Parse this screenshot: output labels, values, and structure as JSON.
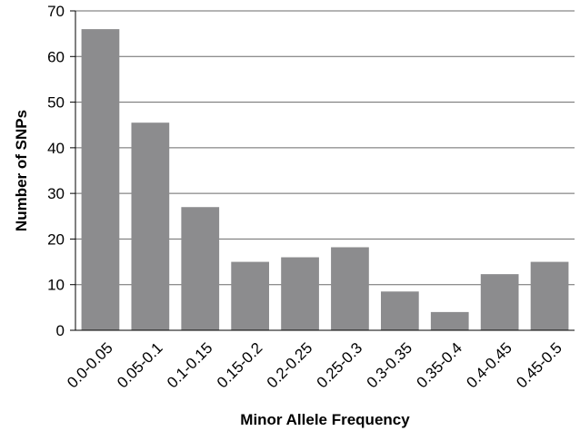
{
  "chart_data": {
    "type": "bar",
    "title": "",
    "xlabel": "Minor Allele Frequency",
    "ylabel": "Number of SNPs",
    "categories": [
      "0.0-0.05",
      "0.05-0.1",
      "0.1-0.15",
      "0.15-0.2",
      "0.2-0.25",
      "0.25-0.3",
      "0.3-0.35",
      "0.35-0.4",
      "0.4-0.45",
      "0.45-0.5"
    ],
    "values": [
      66,
      45.5,
      27,
      15,
      16,
      18.2,
      8.5,
      4,
      12.3,
      15
    ],
    "ylim": [
      0,
      70
    ],
    "yticks": [
      0,
      10,
      20,
      30,
      40,
      50,
      60,
      70
    ],
    "grid": true,
    "legend": "none",
    "colors": {
      "bar": "#8c8c8e",
      "grid": "#6a6a6a",
      "axis": "#000000"
    }
  }
}
